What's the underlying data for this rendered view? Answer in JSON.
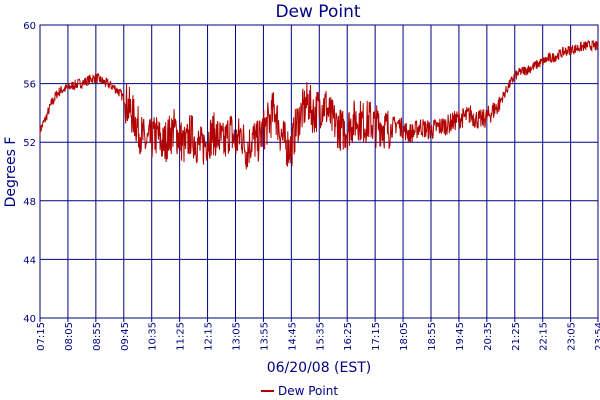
{
  "chart_data": {
    "type": "line",
    "title": "Dew Point",
    "xlabel": "06/20/08 (EST)",
    "ylabel": "Degrees F",
    "ylim": [
      40,
      60
    ],
    "yticks": [
      "40",
      "44",
      "48",
      "52",
      "56",
      "60"
    ],
    "xticks": [
      "07:15",
      "08:05",
      "08:55",
      "09:45",
      "10:35",
      "11:25",
      "12:15",
      "13:05",
      "13:55",
      "14:45",
      "15:35",
      "16:25",
      "17:15",
      "18:05",
      "18:55",
      "19:45",
      "20:35",
      "21:25",
      "22:15",
      "23:05",
      "23:54"
    ],
    "grid": true,
    "legend": "bottom-center",
    "colors": {
      "series": "#b00000",
      "axis": "#000080",
      "grid": "#000080"
    },
    "series": [
      {
        "name": "Dew Point",
        "x": [
          "07:15",
          "07:25",
          "07:35",
          "07:45",
          "07:55",
          "08:05",
          "08:15",
          "08:25",
          "08:35",
          "08:45",
          "08:55",
          "09:05",
          "09:15",
          "09:25",
          "09:35",
          "09:45",
          "09:55",
          "10:05",
          "10:15",
          "10:25",
          "10:35",
          "10:45",
          "10:55",
          "11:05",
          "11:15",
          "11:25",
          "11:35",
          "11:45",
          "11:55",
          "12:05",
          "12:15",
          "12:25",
          "12:35",
          "12:45",
          "12:55",
          "13:05",
          "13:15",
          "13:25",
          "13:35",
          "13:45",
          "13:55",
          "14:05",
          "14:15",
          "14:25",
          "14:35",
          "14:45",
          "14:55",
          "15:05",
          "15:15",
          "15:25",
          "15:35",
          "15:45",
          "15:55",
          "16:05",
          "16:15",
          "16:25",
          "16:35",
          "16:45",
          "16:55",
          "17:05",
          "17:15",
          "17:25",
          "17:35",
          "17:45",
          "17:55",
          "18:05",
          "18:15",
          "18:25",
          "18:35",
          "18:45",
          "18:55",
          "19:05",
          "19:15",
          "19:25",
          "19:35",
          "19:45",
          "19:55",
          "20:05",
          "20:15",
          "20:25",
          "20:35",
          "20:45",
          "20:55",
          "21:05",
          "21:15",
          "21:25",
          "21:35",
          "21:45",
          "21:55",
          "22:05",
          "22:15",
          "22:25",
          "22:35",
          "22:45",
          "22:55",
          "23:05",
          "23:15",
          "23:25",
          "23:35",
          "23:45",
          "23:54"
        ],
        "values": [
          52.8,
          53.6,
          54.6,
          55.3,
          55.6,
          55.7,
          55.9,
          56.0,
          56.1,
          56.3,
          56.4,
          56.2,
          56.0,
          55.8,
          55.5,
          55.0,
          54.3,
          53.5,
          52.6,
          51.9,
          52.2,
          52.5,
          51.8,
          52.4,
          52.9,
          52.3,
          51.7,
          52.6,
          52.0,
          51.6,
          52.2,
          52.6,
          52.3,
          51.8,
          52.9,
          51.9,
          52.6,
          51.4,
          52.3,
          52.0,
          52.8,
          53.4,
          54.3,
          52.7,
          51.8,
          51.6,
          53.3,
          54.1,
          54.8,
          53.9,
          54.4,
          54.6,
          53.7,
          53.2,
          52.8,
          52.9,
          53.4,
          53.6,
          53.3,
          53.5,
          53.1,
          53.2,
          52.9,
          53.0,
          53.3,
          52.9,
          52.6,
          52.7,
          53.1,
          52.9,
          52.8,
          53.0,
          53.1,
          53.2,
          53.4,
          53.6,
          53.7,
          53.9,
          53.6,
          53.5,
          53.7,
          54.1,
          54.5,
          55.2,
          55.9,
          56.5,
          56.8,
          56.9,
          57.1,
          57.3,
          57.5,
          57.7,
          57.8,
          58.0,
          58.2,
          58.3,
          58.4,
          58.5,
          58.6,
          58.6,
          58.5
        ]
      }
    ]
  }
}
